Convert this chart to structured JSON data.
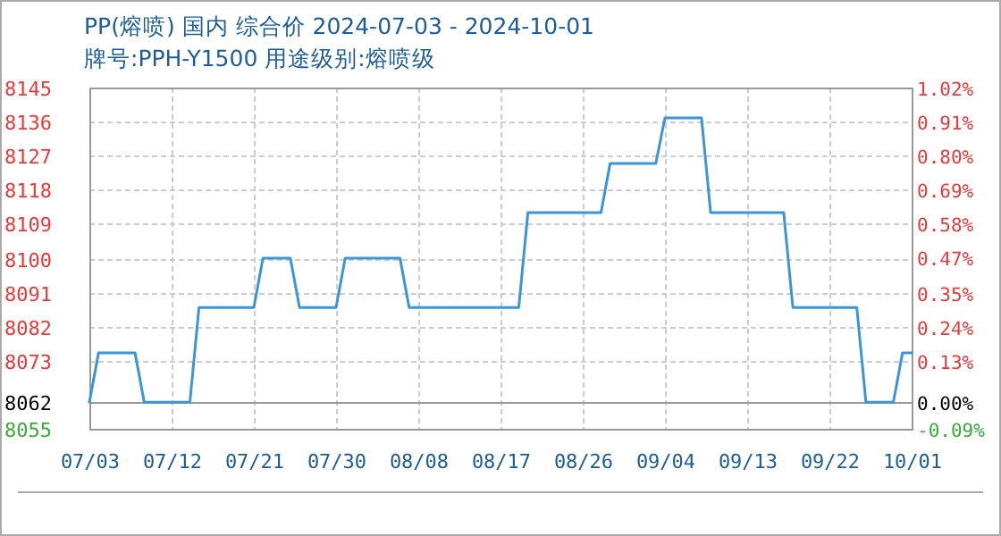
{
  "chart_data": {
    "type": "line",
    "title": "PP(熔喷) 国内 综合价 2024-07-03 - 2024-10-01",
    "subtitle": "牌号:PPH-Y1500 用途级别:熔喷级",
    "x": [
      "2024-07-03",
      "2024-07-04",
      "2024-07-08",
      "2024-07-09",
      "2024-07-14",
      "2024-07-15",
      "2024-07-21",
      "2024-07-22",
      "2024-07-25",
      "2024-07-26",
      "2024-07-30",
      "2024-07-31",
      "2024-08-06",
      "2024-08-07",
      "2024-08-19",
      "2024-08-20",
      "2024-08-28",
      "2024-08-29",
      "2024-09-03",
      "2024-09-04",
      "2024-09-08",
      "2024-09-09",
      "2024-09-17",
      "2024-09-18",
      "2024-09-25",
      "2024-09-26",
      "2024-09-29",
      "2024-09-30",
      "2024-10-01"
    ],
    "series": [
      {
        "color": "#3d94d6",
        "values": [
          8062,
          8075,
          8075,
          8062,
          8062,
          8087,
          8087,
          8100,
          8100,
          8087,
          8087,
          8100,
          8100,
          8087,
          8087,
          8112,
          8112,
          8125,
          8125,
          8137,
          8137,
          8112,
          8112,
          8087,
          8087,
          8062,
          8062,
          8075,
          8075
        ]
      }
    ],
    "xlim": [
      "2024-07-03",
      "2024-10-01"
    ],
    "xticks": [
      {
        "value": "2024-07-03",
        "label": "07/03"
      },
      {
        "value": "2024-07-12",
        "label": "07/12"
      },
      {
        "value": "2024-07-21",
        "label": "07/21"
      },
      {
        "value": "2024-07-30",
        "label": "07/30"
      },
      {
        "value": "2024-08-08",
        "label": "08/08"
      },
      {
        "value": "2024-08-17",
        "label": "08/17"
      },
      {
        "value": "2024-08-26",
        "label": "08/26"
      },
      {
        "value": "2024-09-04",
        "label": "09/04"
      },
      {
        "value": "2024-09-13",
        "label": "09/13"
      },
      {
        "value": "2024-09-22",
        "label": "09/22"
      },
      {
        "value": "2024-10-01",
        "label": "10/01"
      }
    ],
    "ylim": [
      8055,
      8145
    ],
    "yticks": [
      8055,
      8062,
      8073,
      8082,
      8091,
      8100,
      8109,
      8118,
      8127,
      8136,
      8145
    ],
    "y2lim": [
      -0.09,
      1.02
    ],
    "y2ticks": [
      {
        "value": -0.09,
        "label": "-0.09%"
      },
      {
        "value": 0,
        "label": "0.00%"
      },
      {
        "value": 0.13,
        "label": "0.13%"
      },
      {
        "value": 0.24,
        "label": "0.24%"
      },
      {
        "value": 0.35,
        "label": "0.35%"
      },
      {
        "value": 0.47,
        "label": "0.47%"
      },
      {
        "value": 0.58,
        "label": "0.58%"
      },
      {
        "value": 0.69,
        "label": "0.69%"
      },
      {
        "value": 0.8,
        "label": "0.80%"
      },
      {
        "value": 0.91,
        "label": "0.91%"
      },
      {
        "value": 1.02,
        "label": "1.02%"
      }
    ],
    "grid": true,
    "marker": "none",
    "line_style": "solid"
  }
}
